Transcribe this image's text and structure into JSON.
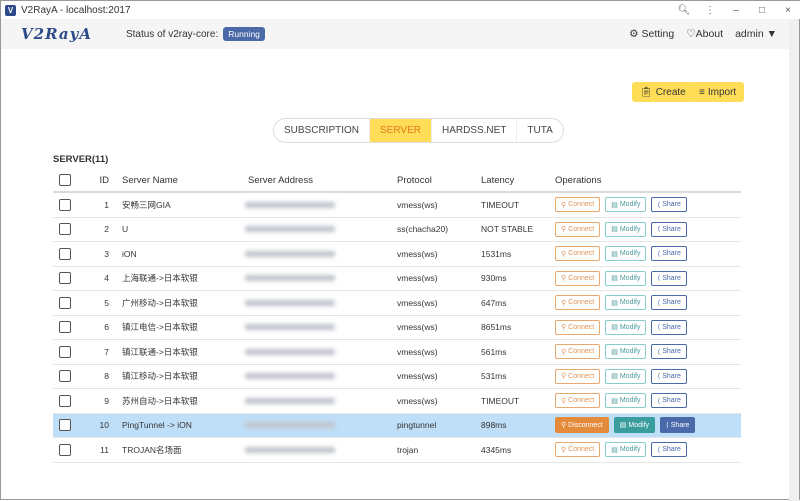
{
  "window": {
    "title": "V2RayA - localhost:2017",
    "controls": [
      "zoom-icon",
      "menu-icon",
      "minimize",
      "maximize",
      "close"
    ]
  },
  "nav": {
    "logo": "V2RayA",
    "status_label": "Status of v2ray-core:",
    "status": "Running",
    "setting": "Setting",
    "about": "About",
    "user": "admin"
  },
  "actions": {
    "create": "Create",
    "import": "Import"
  },
  "tabs": [
    {
      "label": "SUBSCRIPTION"
    },
    {
      "label": "SERVER",
      "active": true
    },
    {
      "label": "HARDSS.NET"
    },
    {
      "label": "TUTA"
    }
  ],
  "section": {
    "title": "SERVER(11)"
  },
  "columns": {
    "id": "ID",
    "name": "Server Name",
    "address": "Server Address",
    "protocol": "Protocol",
    "latency": "Latency",
    "operations": "Operations"
  },
  "labels": {
    "connect": "Connect",
    "disconnect": "Disconnect",
    "modify": "Modify",
    "share": "Share"
  },
  "rows": [
    {
      "id": "1",
      "name": "安畅三网GIA",
      "protocol": "vmess(ws)",
      "latency": "TIMEOUT"
    },
    {
      "id": "2",
      "name": "U",
      "protocol": "ss(chacha20)",
      "latency": "NOT STABLE"
    },
    {
      "id": "3",
      "name": "iON",
      "protocol": "vmess(ws)",
      "latency": "1531ms"
    },
    {
      "id": "4",
      "name": "上海联通->日本软银",
      "protocol": "vmess(ws)",
      "latency": "930ms"
    },
    {
      "id": "5",
      "name": "广州移动->日本软银",
      "protocol": "vmess(ws)",
      "latency": "647ms"
    },
    {
      "id": "6",
      "name": "镇江电信->日本软银",
      "protocol": "vmess(ws)",
      "latency": "8651ms"
    },
    {
      "id": "7",
      "name": "镇江联通->日本软银",
      "protocol": "vmess(ws)",
      "latency": "561ms"
    },
    {
      "id": "8",
      "name": "镇江移动->日本软银",
      "protocol": "vmess(ws)",
      "latency": "531ms"
    },
    {
      "id": "9",
      "name": "苏州自动->日本软银",
      "protocol": "vmess(ws)",
      "latency": "TIMEOUT"
    },
    {
      "id": "10",
      "name": "PingTunnel -> iON",
      "protocol": "pingtunnel",
      "latency": "898ms",
      "connected": true
    },
    {
      "id": "11",
      "name": "TROJAN名场面",
      "protocol": "trojan",
      "latency": "4345ms"
    }
  ]
}
